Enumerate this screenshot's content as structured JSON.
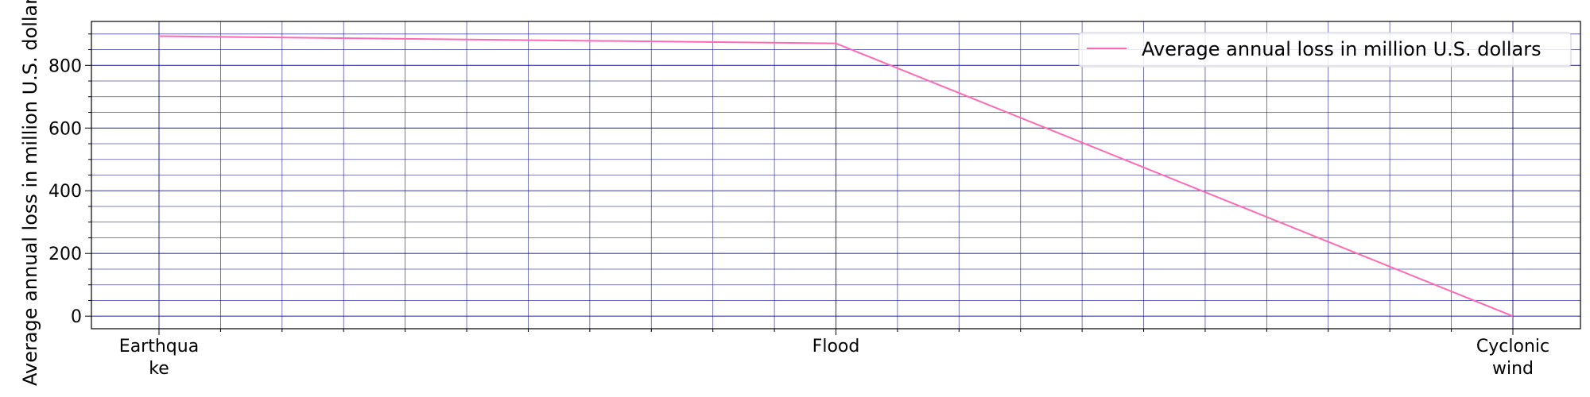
{
  "chart_data": {
    "type": "line",
    "categories": [
      "Earthquake",
      "Flood",
      "Cyclonic wind"
    ],
    "category_tick_lines": [
      [
        "Earthqua",
        "ke"
      ],
      [
        "Flood"
      ],
      [
        "Cyclonic",
        "wind"
      ]
    ],
    "series": [
      {
        "name": "Average annual loss in million U.S. dollars",
        "values": [
          893,
          870,
          0
        ],
        "color": "#ff69b4"
      }
    ],
    "title": "",
    "xlabel": "",
    "ylabel": "Average annual loss in million U.S. dollars",
    "ylim": [
      -40,
      940
    ],
    "y_ticks": [
      0,
      200,
      400,
      600,
      800
    ],
    "y_minor_step": 50,
    "x_minor_divisions": 11,
    "grid": true,
    "grid_color": "#1a1a8c",
    "legend_position": "upper-right"
  }
}
